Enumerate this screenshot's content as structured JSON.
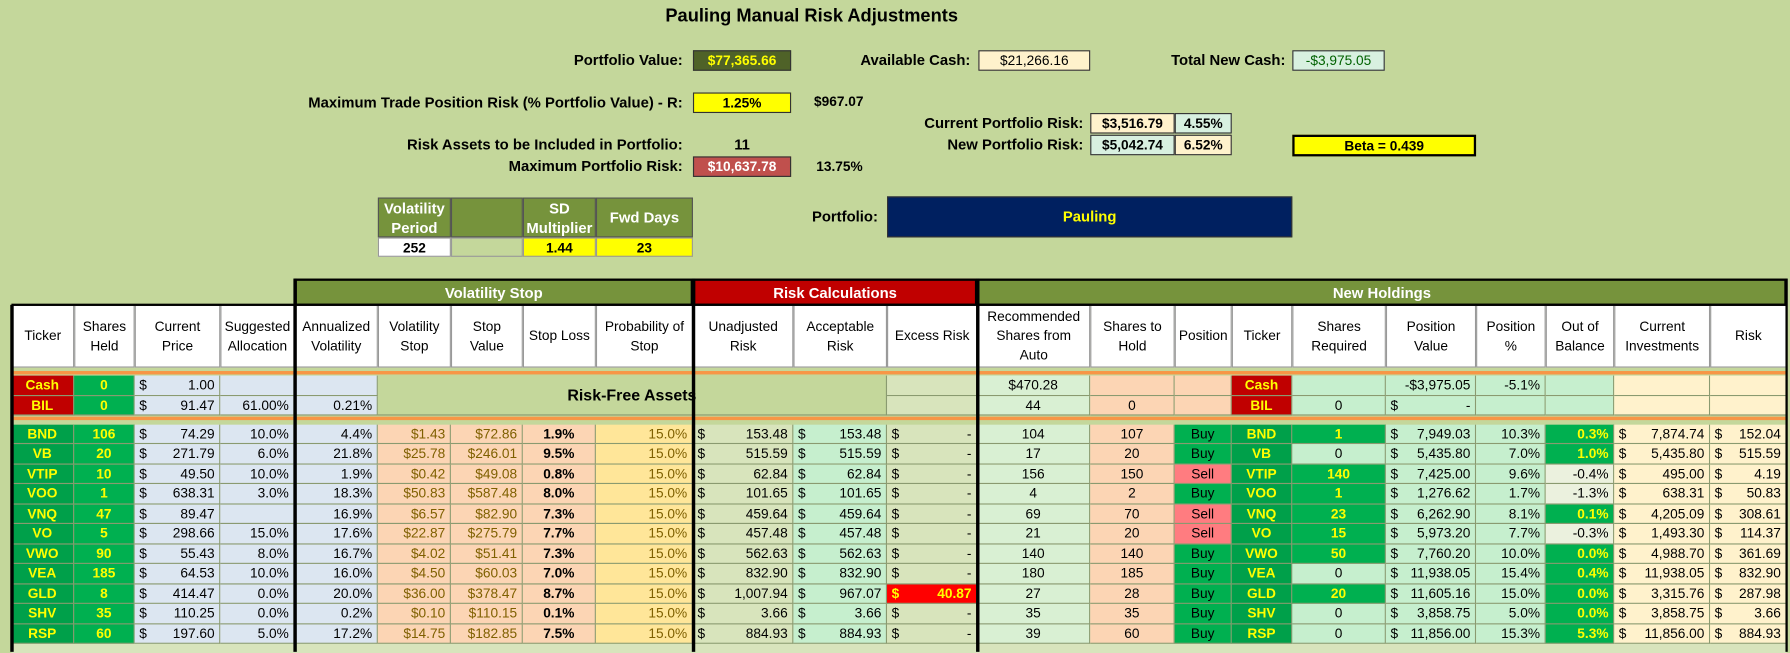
{
  "header": {
    "title": "Pauling Manual Risk Adjustments",
    "portfolio_value": {
      "label": "Portfolio Value:",
      "value": "$77,365.66"
    },
    "available_cash": {
      "label": "Available Cash:",
      "value": "$21,266.16"
    },
    "total_new_cash": {
      "label": "Total New Cash:",
      "value": "-$3,975.05"
    },
    "max_trade_risk": {
      "label": "Maximum Trade Position Risk (% Portfolio Value) - R:",
      "value": "1.25%",
      "amount": "$967.07"
    },
    "current_portfolio_risk": {
      "label": "Current Portfolio Risk:",
      "value": "$3,516.79",
      "pct": "4.55%"
    },
    "new_portfolio_risk": {
      "label": "New Portfolio Risk:",
      "value": "$5,042.74",
      "pct": "6.52%"
    },
    "beta": "Beta = 0.439",
    "risk_assets": {
      "label": "Risk Assets to be Included in Portfolio:",
      "value": "11"
    },
    "max_portfolio_risk": {
      "label": "Maximum Portfolio Risk:",
      "value": "$10,637.78",
      "pct": "13.75%"
    },
    "vol_table": {
      "headers": [
        "Volatility Period",
        null,
        "SD Multiplier",
        "Fwd Days"
      ],
      "values": [
        "252",
        null,
        "1.44",
        "23"
      ]
    },
    "portfolio": {
      "label": "Portfolio:",
      "value": "Pauling"
    }
  },
  "table": {
    "groups": [
      "Volatility Stop",
      "Risk Calculations",
      "New Holdings"
    ],
    "columns": [
      "Ticker",
      "Shares Held",
      "Current Price",
      "Suggested Allocation",
      "Annualized Volatility",
      "Volatility Stop",
      "Stop Value",
      "Stop Loss",
      "Probability of Stop",
      "Unadjusted Risk",
      "Acceptable Risk",
      "Excess Risk",
      "Recommended Shares from Auto",
      "Shares to Hold",
      "Position",
      "Ticker",
      "Shares Required",
      "Position Value",
      "Position %",
      "Out of Balance",
      "Current Investments",
      "Risk"
    ],
    "risk_free_label": "Risk-Free Assets",
    "special_rows": [
      [
        "Cash",
        "0",
        [
          "$",
          "1.00"
        ],
        null,
        null,
        null,
        null,
        null,
        null,
        null,
        null,
        null,
        "$470.28",
        null,
        null,
        "Cash",
        null,
        "-$3,975.05",
        "-5.1%",
        null,
        null,
        null
      ],
      [
        "BIL",
        "0",
        [
          "$",
          "91.47"
        ],
        "61.00%",
        "0.21%",
        null,
        null,
        null,
        null,
        null,
        null,
        null,
        "44",
        "0",
        null,
        "BIL",
        "0",
        [
          "$",
          "-"
        ],
        null,
        null,
        null,
        null
      ]
    ],
    "rows": [
      [
        "BND",
        "106",
        [
          "$",
          "74.29"
        ],
        "10.0%",
        "4.4%",
        "$1.43",
        "$72.86",
        "1.9%",
        "15.0%",
        [
          "$",
          "153.48"
        ],
        [
          "$",
          "153.48"
        ],
        [
          "$",
          "-"
        ],
        "104",
        "107",
        "Buy",
        "BND",
        "1",
        [
          "$",
          "7,949.03"
        ],
        "10.3%",
        "0.3%",
        [
          "$",
          "7,874.74"
        ],
        [
          "$",
          "152.04"
        ]
      ],
      [
        "VB",
        "20",
        [
          "$",
          "271.79"
        ],
        "6.0%",
        "21.8%",
        "$25.78",
        "$246.01",
        "9.5%",
        "15.0%",
        [
          "$",
          "515.59"
        ],
        [
          "$",
          "515.59"
        ],
        [
          "$",
          "-"
        ],
        "17",
        "20",
        "Buy",
        "VB",
        "0",
        [
          "$",
          "5,435.80"
        ],
        "7.0%",
        "1.0%",
        [
          "$",
          "5,435.80"
        ],
        [
          "$",
          "515.59"
        ]
      ],
      [
        "VTIP",
        "10",
        [
          "$",
          "49.50"
        ],
        "10.0%",
        "1.9%",
        "$0.42",
        "$49.08",
        "0.8%",
        "15.0%",
        [
          "$",
          "62.84"
        ],
        [
          "$",
          "62.84"
        ],
        [
          "$",
          "-"
        ],
        "156",
        "150",
        "Sell",
        "VTIP",
        "140",
        [
          "$",
          "7,425.00"
        ],
        "9.6%",
        "-0.4%",
        [
          "$",
          "495.00"
        ],
        [
          "$",
          "4.19"
        ]
      ],
      [
        "VOO",
        "1",
        [
          "$",
          "638.31"
        ],
        "3.0%",
        "18.3%",
        "$50.83",
        "$587.48",
        "8.0%",
        "15.0%",
        [
          "$",
          "101.65"
        ],
        [
          "$",
          "101.65"
        ],
        [
          "$",
          "-"
        ],
        "4",
        "2",
        "Buy",
        "VOO",
        "1",
        [
          "$",
          "1,276.62"
        ],
        "1.7%",
        "-1.3%",
        [
          "$",
          "638.31"
        ],
        [
          "$",
          "50.83"
        ]
      ],
      [
        "VNQ",
        "47",
        [
          "$",
          "89.47"
        ],
        null,
        "16.9%",
        "$6.57",
        "$82.90",
        "7.3%",
        "15.0%",
        [
          "$",
          "459.64"
        ],
        [
          "$",
          "459.64"
        ],
        [
          "$",
          "-"
        ],
        "69",
        "70",
        "Sell",
        "VNQ",
        "23",
        [
          "$",
          "6,262.90"
        ],
        "8.1%",
        "0.1%",
        [
          "$",
          "4,205.09"
        ],
        [
          "$",
          "308.61"
        ]
      ],
      [
        "VO",
        "5",
        [
          "$",
          "298.66"
        ],
        "15.0%",
        "17.6%",
        "$22.87",
        "$275.79",
        "7.7%",
        "15.0%",
        [
          "$",
          "457.48"
        ],
        [
          "$",
          "457.48"
        ],
        [
          "$",
          "-"
        ],
        "21",
        "20",
        "Sell",
        "VO",
        "15",
        [
          "$",
          "5,973.20"
        ],
        "7.7%",
        "-0.3%",
        [
          "$",
          "1,493.30"
        ],
        [
          "$",
          "114.37"
        ]
      ],
      [
        "VWO",
        "90",
        [
          "$",
          "55.43"
        ],
        "8.0%",
        "16.7%",
        "$4.02",
        "$51.41",
        "7.3%",
        "15.0%",
        [
          "$",
          "562.63"
        ],
        [
          "$",
          "562.63"
        ],
        [
          "$",
          "-"
        ],
        "140",
        "140",
        "Buy",
        "VWO",
        "50",
        [
          "$",
          "7,760.20"
        ],
        "10.0%",
        "0.0%",
        [
          "$",
          "4,988.70"
        ],
        [
          "$",
          "361.69"
        ]
      ],
      [
        "VEA",
        "185",
        [
          "$",
          "64.53"
        ],
        "10.0%",
        "16.0%",
        "$4.50",
        "$60.03",
        "7.0%",
        "15.0%",
        [
          "$",
          "832.90"
        ],
        [
          "$",
          "832.90"
        ],
        [
          "$",
          "-"
        ],
        "180",
        "185",
        "Buy",
        "VEA",
        "0",
        [
          "$",
          "11,938.05"
        ],
        "15.4%",
        "0.4%",
        [
          "$",
          "11,938.05"
        ],
        [
          "$",
          "832.90"
        ]
      ],
      [
        "GLD",
        "8",
        [
          "$",
          "414.47"
        ],
        "0.0%",
        "20.0%",
        "$36.00",
        "$378.47",
        "8.7%",
        "15.0%",
        [
          "$",
          "1,007.94"
        ],
        [
          "$",
          "967.07"
        ],
        [
          "$",
          "40.87"
        ],
        "27",
        "28",
        "Buy",
        "GLD",
        "20",
        [
          "$",
          "11,605.16"
        ],
        "15.0%",
        "0.0%",
        [
          "$",
          "3,315.76"
        ],
        [
          "$",
          "287.98"
        ]
      ],
      [
        "SHV",
        "35",
        [
          "$",
          "110.25"
        ],
        "0.0%",
        "0.2%",
        "$0.10",
        "$110.15",
        "0.1%",
        "15.0%",
        [
          "$",
          "3.66"
        ],
        [
          "$",
          "3.66"
        ],
        [
          "$",
          "-"
        ],
        "35",
        "35",
        "Buy",
        "SHV",
        "0",
        [
          "$",
          "3,858.75"
        ],
        "5.0%",
        "0.0%",
        [
          "$",
          "3,858.75"
        ],
        [
          "$",
          "3.66"
        ]
      ],
      [
        "RSP",
        "60",
        [
          "$",
          "197.60"
        ],
        "5.0%",
        "17.2%",
        "$14.75",
        "$182.85",
        "7.5%",
        "15.0%",
        [
          "$",
          "884.93"
        ],
        [
          "$",
          "884.93"
        ],
        [
          "$",
          "-"
        ],
        "39",
        "60",
        "Buy",
        "RSP",
        "0",
        [
          "$",
          "11,856.00"
        ],
        "15.3%",
        "5.3%",
        [
          "$",
          "11,856.00"
        ],
        [
          "$",
          "884.93"
        ]
      ]
    ]
  }
}
